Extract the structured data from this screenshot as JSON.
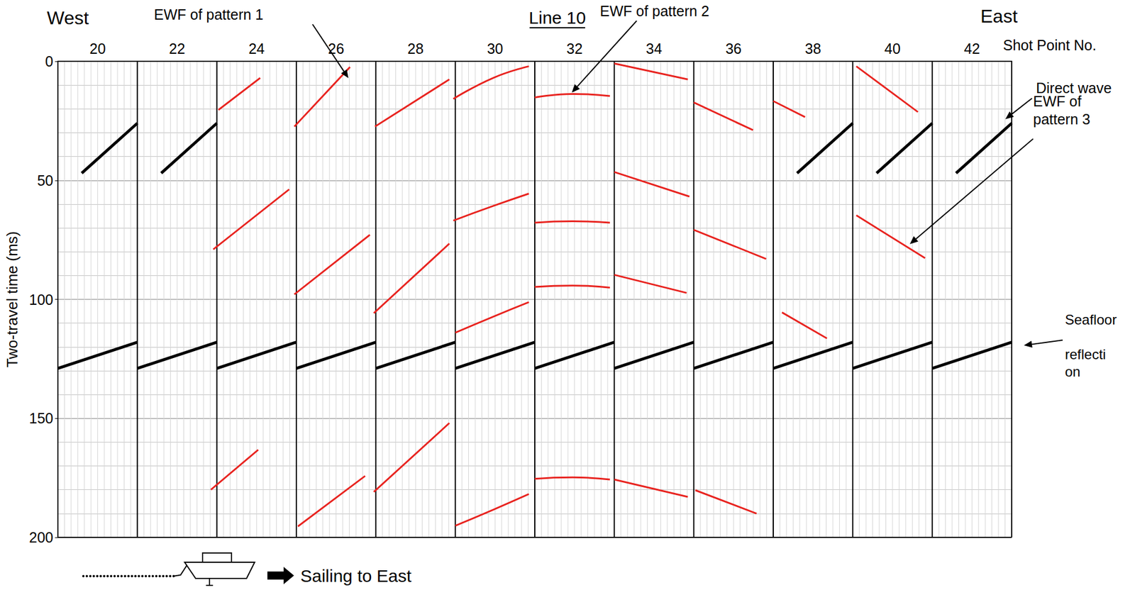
{
  "chart_data": {
    "type": "line",
    "title": "Line 10",
    "x_label": "Shot Point No.",
    "y_label": "Two-travel time (ms)",
    "west_label": "West",
    "east_label": "East",
    "annotation": "Sailing to East",
    "xlim": [
      19,
      43
    ],
    "xticks": [
      20,
      22,
      24,
      26,
      28,
      30,
      32,
      34,
      36,
      38,
      40,
      42
    ],
    "ylim": [
      0,
      200
    ],
    "yticks": [
      0,
      50,
      100,
      150,
      200
    ],
    "grid": true,
    "series": [
      {
        "name": "EWF of pattern 1",
        "color": "#e8231f",
        "line_style": "solid",
        "values": [
          [
            [
              23.04,
              20.4
            ],
            [
              24.09,
              7.0
            ]
          ],
          [
            [
              24.95,
              27.4
            ],
            [
              26.35,
              2.4
            ]
          ],
          [
            [
              26.98,
              27.4
            ],
            [
              28.85,
              7.6
            ]
          ],
          [
            [
              22.91,
              79.0
            ],
            [
              24.82,
              53.8
            ]
          ],
          [
            [
              24.95,
              97.9
            ],
            [
              26.85,
              72.9
            ]
          ],
          [
            [
              26.95,
              105.8
            ],
            [
              28.85,
              76.6
            ]
          ],
          [
            [
              22.85,
              180.0
            ],
            [
              24.04,
              163.2
            ]
          ],
          [
            [
              25.04,
              195.4
            ],
            [
              26.73,
              174.2
            ]
          ],
          [
            [
              26.95,
              180.9
            ],
            [
              28.85,
              152.0
            ]
          ]
        ]
      },
      {
        "name": "EWF of pattern 2",
        "color": "#e8231f",
        "line_style": "solid",
        "values": [
          [
            [
              28.95,
              15.8
            ],
            [
              29.95,
              7.0
            ],
            [
              30.85,
              2.1
            ]
          ],
          [
            [
              31.0,
              15.2
            ],
            [
              31.95,
              13.7
            ],
            [
              32.89,
              14.6
            ]
          ],
          [
            [
              28.95,
              66.9
            ],
            [
              29.95,
              60.8
            ],
            [
              30.85,
              55.6
            ]
          ],
          [
            [
              31.0,
              67.8
            ],
            [
              31.95,
              67.2
            ],
            [
              32.89,
              67.8
            ]
          ],
          [
            [
              29.0,
              114.0
            ],
            [
              29.95,
              107.3
            ],
            [
              30.85,
              101.2
            ]
          ],
          [
            [
              31.0,
              94.8
            ],
            [
              31.95,
              94.2
            ],
            [
              32.89,
              95.1
            ]
          ],
          [
            [
              29.0,
              195.1
            ],
            [
              29.95,
              188.4
            ],
            [
              30.85,
              181.8
            ]
          ],
          [
            [
              31.0,
              175.4
            ],
            [
              31.95,
              174.8
            ],
            [
              32.89,
              175.7
            ]
          ]
        ]
      },
      {
        "name": "EWF of pattern 3",
        "color": "#e8231f",
        "line_style": "solid",
        "values": [
          [
            [
              33.0,
              0.9
            ],
            [
              34.85,
              7.6
            ]
          ],
          [
            [
              33.0,
              46.5
            ],
            [
              34.89,
              56.8
            ]
          ],
          [
            [
              33.0,
              89.7
            ],
            [
              34.82,
              97.3
            ]
          ],
          [
            [
              33.0,
              175.7
            ],
            [
              34.85,
              183.0
            ]
          ],
          [
            [
              35.0,
              17.3
            ],
            [
              36.49,
              28.9
            ]
          ],
          [
            [
              35.0,
              70.8
            ],
            [
              36.82,
              83.0
            ]
          ],
          [
            [
              35.04,
              180.2
            ],
            [
              36.58,
              190.0
            ]
          ],
          [
            [
              37.0,
              16.7
            ],
            [
              37.8,
              23.4
            ]
          ],
          [
            [
              37.22,
              105.5
            ],
            [
              38.35,
              116.4
            ]
          ],
          [
            [
              39.09,
              2.1
            ],
            [
              40.64,
              21.3
            ]
          ],
          [
            [
              39.09,
              64.7
            ],
            [
              40.82,
              82.7
            ]
          ]
        ]
      },
      {
        "name": "Direct wave",
        "color": "#000000",
        "line_style": "bold",
        "values": [
          [
            [
              19.6,
              47
            ],
            [
              21,
              26
            ]
          ],
          [
            [
              21.6,
              47
            ],
            [
              23,
              26
            ]
          ],
          [
            [
              37.6,
              47
            ],
            [
              39,
              26
            ]
          ],
          [
            [
              39.6,
              47
            ],
            [
              41,
              26
            ]
          ],
          [
            [
              41.6,
              47
            ],
            [
              43,
              26
            ]
          ]
        ]
      },
      {
        "name": "Seafloor reflection",
        "color": "#000000",
        "line_style": "bold",
        "values": [
          [
            [
              19,
              129
            ],
            [
              21,
              118
            ]
          ],
          [
            [
              21,
              129
            ],
            [
              23,
              118
            ]
          ],
          [
            [
              23,
              129
            ],
            [
              25,
              118
            ]
          ],
          [
            [
              25,
              129
            ],
            [
              27,
              118
            ]
          ],
          [
            [
              27,
              129
            ],
            [
              29,
              118
            ]
          ],
          [
            [
              29,
              129
            ],
            [
              31,
              118
            ]
          ],
          [
            [
              31,
              129
            ],
            [
              33,
              118
            ]
          ],
          [
            [
              33,
              129
            ],
            [
              35,
              118
            ]
          ],
          [
            [
              35,
              129
            ],
            [
              37,
              118
            ]
          ],
          [
            [
              37,
              129
            ],
            [
              39,
              118
            ]
          ],
          [
            [
              39,
              129
            ],
            [
              41,
              118
            ]
          ],
          [
            [
              41,
              129
            ],
            [
              43,
              118
            ]
          ]
        ]
      }
    ]
  }
}
